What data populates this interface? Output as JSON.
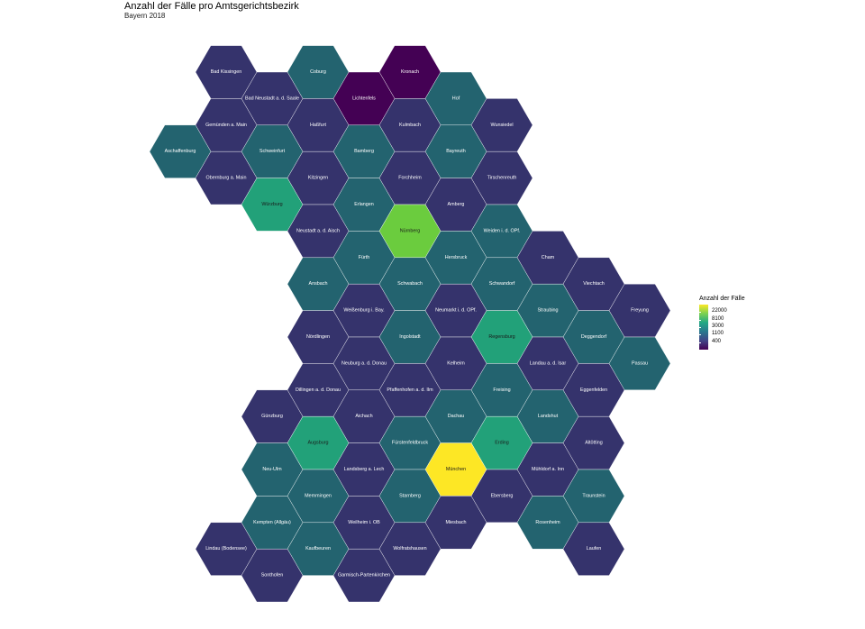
{
  "title": "Anzahl der Fälle pro Amtsgerichtsbezirk",
  "subtitle": "Bayern 2018",
  "legend": {
    "title": "Anzahl der Fälle",
    "labels": [
      "22000",
      "8100",
      "3000",
      "1100",
      "400"
    ],
    "colors": [
      "#fde725",
      "#7ad151",
      "#22a884",
      "#2a788e",
      "#414487",
      "#440154"
    ]
  },
  "palette": {
    "deep": "#440154",
    "low": "#35336c",
    "mid": "#23636f",
    "green": "#22a179",
    "lime": "#6bcc3e",
    "yellow": "#fde725"
  },
  "districts": [
    {
      "name": "Bad Kissingen",
      "col": 0,
      "row": 0,
      "level": "low"
    },
    {
      "name": "Coburg",
      "col": 2,
      "row": 0,
      "level": "mid"
    },
    {
      "name": "Kronach",
      "col": 4,
      "row": 0,
      "level": "deep"
    },
    {
      "name": "Bad Neustadt a. d. Saale",
      "col": 1,
      "row": 1,
      "level": "low"
    },
    {
      "name": "Lichtenfels",
      "col": 3,
      "row": 1,
      "level": "deep"
    },
    {
      "name": "Hof",
      "col": 5,
      "row": 1,
      "level": "mid"
    },
    {
      "name": "Gemünden a. Main",
      "col": 0,
      "row": 2,
      "level": "low"
    },
    {
      "name": "Haßfurt",
      "col": 2,
      "row": 2,
      "level": "low"
    },
    {
      "name": "Kulmbach",
      "col": 4,
      "row": 2,
      "level": "low"
    },
    {
      "name": "Wunsiedel",
      "col": 6,
      "row": 2,
      "level": "low"
    },
    {
      "name": "Aschaffenburg",
      "col": -1,
      "row": 3,
      "level": "mid"
    },
    {
      "name": "Schweinfurt",
      "col": 1,
      "row": 3,
      "level": "mid"
    },
    {
      "name": "Bamberg",
      "col": 3,
      "row": 3,
      "level": "mid"
    },
    {
      "name": "Bayreuth",
      "col": 5,
      "row": 3,
      "level": "mid"
    },
    {
      "name": "Obernburg a. Main",
      "col": 0,
      "row": 4,
      "level": "low"
    },
    {
      "name": "Kitzingen",
      "col": 2,
      "row": 4,
      "level": "low"
    },
    {
      "name": "Forchheim",
      "col": 4,
      "row": 4,
      "level": "low"
    },
    {
      "name": "Tirschenreuth",
      "col": 6,
      "row": 4,
      "level": "low"
    },
    {
      "name": "Würzburg",
      "col": 1,
      "row": 5,
      "level": "green"
    },
    {
      "name": "Erlangen",
      "col": 3,
      "row": 5,
      "level": "mid"
    },
    {
      "name": "Amberg",
      "col": 5,
      "row": 5,
      "level": "low"
    },
    {
      "name": "Neustadt a. d. Aisch",
      "col": 2,
      "row": 6,
      "level": "low"
    },
    {
      "name": "Nürnberg",
      "col": 4,
      "row": 6,
      "level": "lime"
    },
    {
      "name": "Weiden i. d. OPf.",
      "col": 6,
      "row": 6,
      "level": "mid"
    },
    {
      "name": "Fürth",
      "col": 3,
      "row": 7,
      "level": "mid"
    },
    {
      "name": "Hersbruck",
      "col": 5,
      "row": 7,
      "level": "mid"
    },
    {
      "name": "Cham",
      "col": 7,
      "row": 7,
      "level": "low"
    },
    {
      "name": "Ansbach",
      "col": 2,
      "row": 8,
      "level": "mid"
    },
    {
      "name": "Schwabach",
      "col": 4,
      "row": 8,
      "level": "mid"
    },
    {
      "name": "Schwandorf",
      "col": 6,
      "row": 8,
      "level": "mid"
    },
    {
      "name": "Viechtach",
      "col": 8,
      "row": 8,
      "level": "low"
    },
    {
      "name": "Weißenburg i. Bay.",
      "col": 3,
      "row": 9,
      "level": "low"
    },
    {
      "name": "Neumarkt i. d. OPf.",
      "col": 5,
      "row": 9,
      "level": "low"
    },
    {
      "name": "Straubing",
      "col": 7,
      "row": 9,
      "level": "mid"
    },
    {
      "name": "Freyung",
      "col": 9,
      "row": 9,
      "level": "low"
    },
    {
      "name": "Nördlingen",
      "col": 2,
      "row": 10,
      "level": "low"
    },
    {
      "name": "Ingolstadt",
      "col": 4,
      "row": 10,
      "level": "mid"
    },
    {
      "name": "Regensburg",
      "col": 6,
      "row": 10,
      "level": "green"
    },
    {
      "name": "Deggendorf",
      "col": 8,
      "row": 10,
      "level": "mid"
    },
    {
      "name": "Neuburg a. d. Donau",
      "col": 3,
      "row": 11,
      "level": "low"
    },
    {
      "name": "Kelheim",
      "col": 5,
      "row": 11,
      "level": "low"
    },
    {
      "name": "Landau a. d. Isar",
      "col": 7,
      "row": 11,
      "level": "low"
    },
    {
      "name": "Passau",
      "col": 9,
      "row": 11,
      "level": "mid"
    },
    {
      "name": "Dillingen a. d. Donau",
      "col": 2,
      "row": 12,
      "level": "low"
    },
    {
      "name": "Pfaffenhofen a. d. Ilm",
      "col": 4,
      "row": 12,
      "level": "low"
    },
    {
      "name": "Freising",
      "col": 6,
      "row": 12,
      "level": "mid"
    },
    {
      "name": "Eggenfelden",
      "col": 8,
      "row": 12,
      "level": "low"
    },
    {
      "name": "Günzburg",
      "col": 1,
      "row": 13,
      "level": "low"
    },
    {
      "name": "Aichach",
      "col": 3,
      "row": 13,
      "level": "low"
    },
    {
      "name": "Dachau",
      "col": 5,
      "row": 13,
      "level": "mid"
    },
    {
      "name": "Landshut",
      "col": 7,
      "row": 13,
      "level": "mid"
    },
    {
      "name": "Augsburg",
      "col": 2,
      "row": 14,
      "level": "green"
    },
    {
      "name": "Fürstenfeldbruck",
      "col": 4,
      "row": 14,
      "level": "mid"
    },
    {
      "name": "Erding",
      "col": 6,
      "row": 14,
      "level": "green"
    },
    {
      "name": "Altötting",
      "col": 8,
      "row": 14,
      "level": "low"
    },
    {
      "name": "Neu-Ulm",
      "col": 1,
      "row": 15,
      "level": "mid"
    },
    {
      "name": "Landsberg a. Lech",
      "col": 3,
      "row": 15,
      "level": "low"
    },
    {
      "name": "München",
      "col": 5,
      "row": 15,
      "level": "yellow"
    },
    {
      "name": "Mühldorf a. Inn",
      "col": 7,
      "row": 15,
      "level": "low"
    },
    {
      "name": "Memmingen",
      "col": 2,
      "row": 16,
      "level": "mid"
    },
    {
      "name": "Starnberg",
      "col": 4,
      "row": 16,
      "level": "mid"
    },
    {
      "name": "Ebersberg",
      "col": 6,
      "row": 16,
      "level": "low"
    },
    {
      "name": "Traunstein",
      "col": 8,
      "row": 16,
      "level": "mid"
    },
    {
      "name": "Kempten (Allgäu)",
      "col": 1,
      "row": 17,
      "level": "mid"
    },
    {
      "name": "Weilheim i. OB",
      "col": 3,
      "row": 17,
      "level": "low"
    },
    {
      "name": "Miesbach",
      "col": 5,
      "row": 17,
      "level": "low"
    },
    {
      "name": "Rosenheim",
      "col": 7,
      "row": 17,
      "level": "mid"
    },
    {
      "name": "Lindau (Bodensee)",
      "col": 0,
      "row": 18,
      "level": "low"
    },
    {
      "name": "Kaufbeuren",
      "col": 2,
      "row": 18,
      "level": "mid"
    },
    {
      "name": "Wolfratshausen",
      "col": 4,
      "row": 18,
      "level": "low"
    },
    {
      "name": "Laufen",
      "col": 8,
      "row": 18,
      "level": "low"
    },
    {
      "name": "Sonthofen",
      "col": 1,
      "row": 19,
      "level": "low"
    },
    {
      "name": "Garmisch-Partenkirchen",
      "col": 3,
      "row": 19,
      "level": "low"
    }
  ]
}
